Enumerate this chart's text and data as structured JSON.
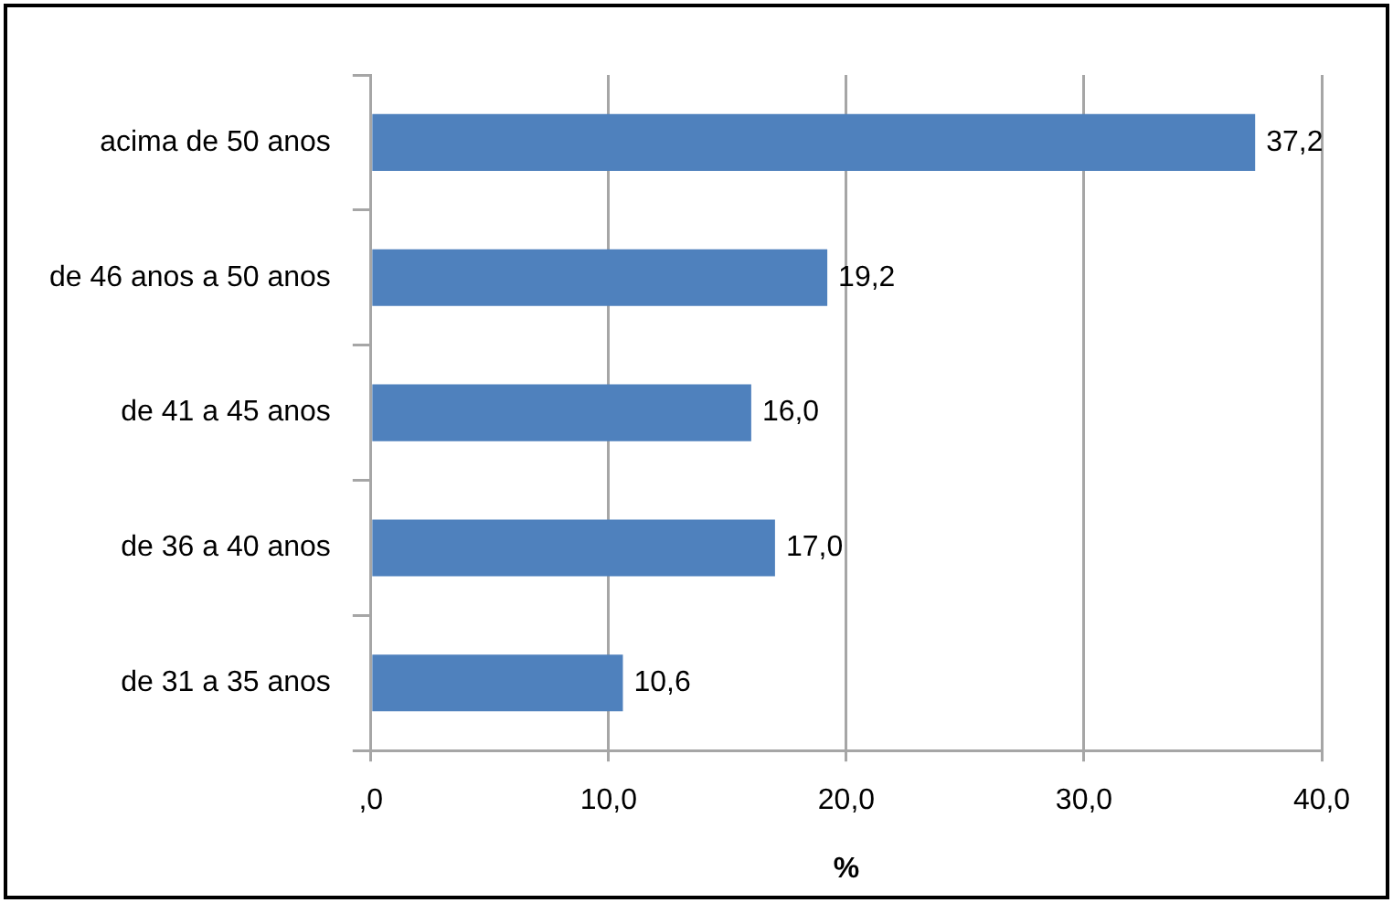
{
  "chart_data": {
    "type": "bar",
    "orientation": "horizontal",
    "categories": [
      "acima de 50 anos",
      "de 46 anos a 50 anos",
      "de 41 a 45 anos",
      "de 36 a 40 anos",
      "de 31 a 35 anos"
    ],
    "values": [
      37.2,
      19.2,
      16.0,
      17.0,
      10.6
    ],
    "color": "#4f81bd",
    "value_labels": [
      "37,2",
      "19,2",
      "16,0",
      "17,0",
      "10,6"
    ],
    "xlabel": "%",
    "xlim": [
      0,
      40
    ],
    "xticks": [
      {
        "value": 0,
        "label": ",0"
      },
      {
        "value": 10,
        "label": "10,0"
      },
      {
        "value": 20,
        "label": "20,0"
      },
      {
        "value": 30,
        "label": "30,0"
      },
      {
        "value": 40,
        "label": "40,0"
      }
    ],
    "grid": "x"
  }
}
